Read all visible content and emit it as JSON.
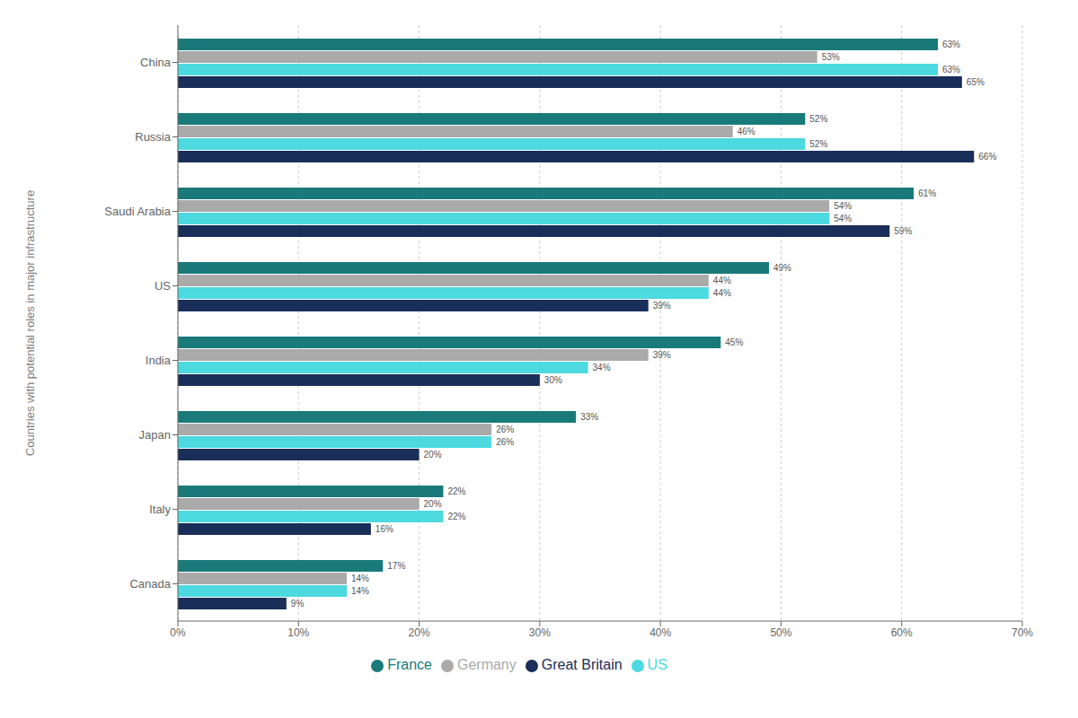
{
  "chart_data": {
    "type": "bar",
    "orientation": "horizontal",
    "ylabel": "Countries with potential roles in major infrastructure",
    "categories": [
      "China",
      "Russia",
      "Saudi Arabia",
      "US",
      "India",
      "Japan",
      "Italy",
      "Canada"
    ],
    "series": [
      {
        "name": "France",
        "color": "#1a7a7a",
        "values": [
          63,
          52,
          61,
          49,
          45,
          33,
          22,
          17
        ],
        "value_labels": [
          "63%",
          "52%",
          "61%",
          "49%",
          "45%",
          "33%",
          "22%",
          "17%"
        ]
      },
      {
        "name": "Germany",
        "color": "#aaaaaa",
        "values": [
          53,
          46,
          54,
          44,
          39,
          26,
          20,
          14
        ],
        "value_labels": [
          "53%",
          "46%",
          "54%",
          "44%",
          "39%",
          "26%",
          "20%",
          "14%"
        ]
      },
      {
        "name": "US",
        "color": "#4dd9e0",
        "values": [
          63,
          52,
          54,
          44,
          34,
          26,
          22,
          14
        ],
        "value_labels": [
          "63%",
          "52%",
          "54%",
          "44%",
          "34%",
          "26%",
          "22%",
          "14%"
        ]
      },
      {
        "name": "Great Britain",
        "color": "#1a2e5a",
        "values": [
          65,
          66,
          59,
          39,
          30,
          20,
          16,
          9
        ],
        "value_labels": [
          "65%",
          "66%",
          "59%",
          "39%",
          "30%",
          "20%",
          "16%",
          "9%"
        ]
      }
    ],
    "xlim": [
      0,
      70
    ],
    "xticks": [
      {
        "value": 0,
        "label": "0%"
      },
      {
        "value": 10,
        "label": "10%"
      },
      {
        "value": 20,
        "label": "20%"
      },
      {
        "value": 30,
        "label": "30%"
      },
      {
        "value": 40,
        "label": "40%"
      },
      {
        "value": 50,
        "label": "50%"
      },
      {
        "value": 60,
        "label": "60%"
      },
      {
        "value": 70,
        "label": "70%"
      }
    ],
    "grid": true,
    "legend": "bottom",
    "data_labels": true
  }
}
